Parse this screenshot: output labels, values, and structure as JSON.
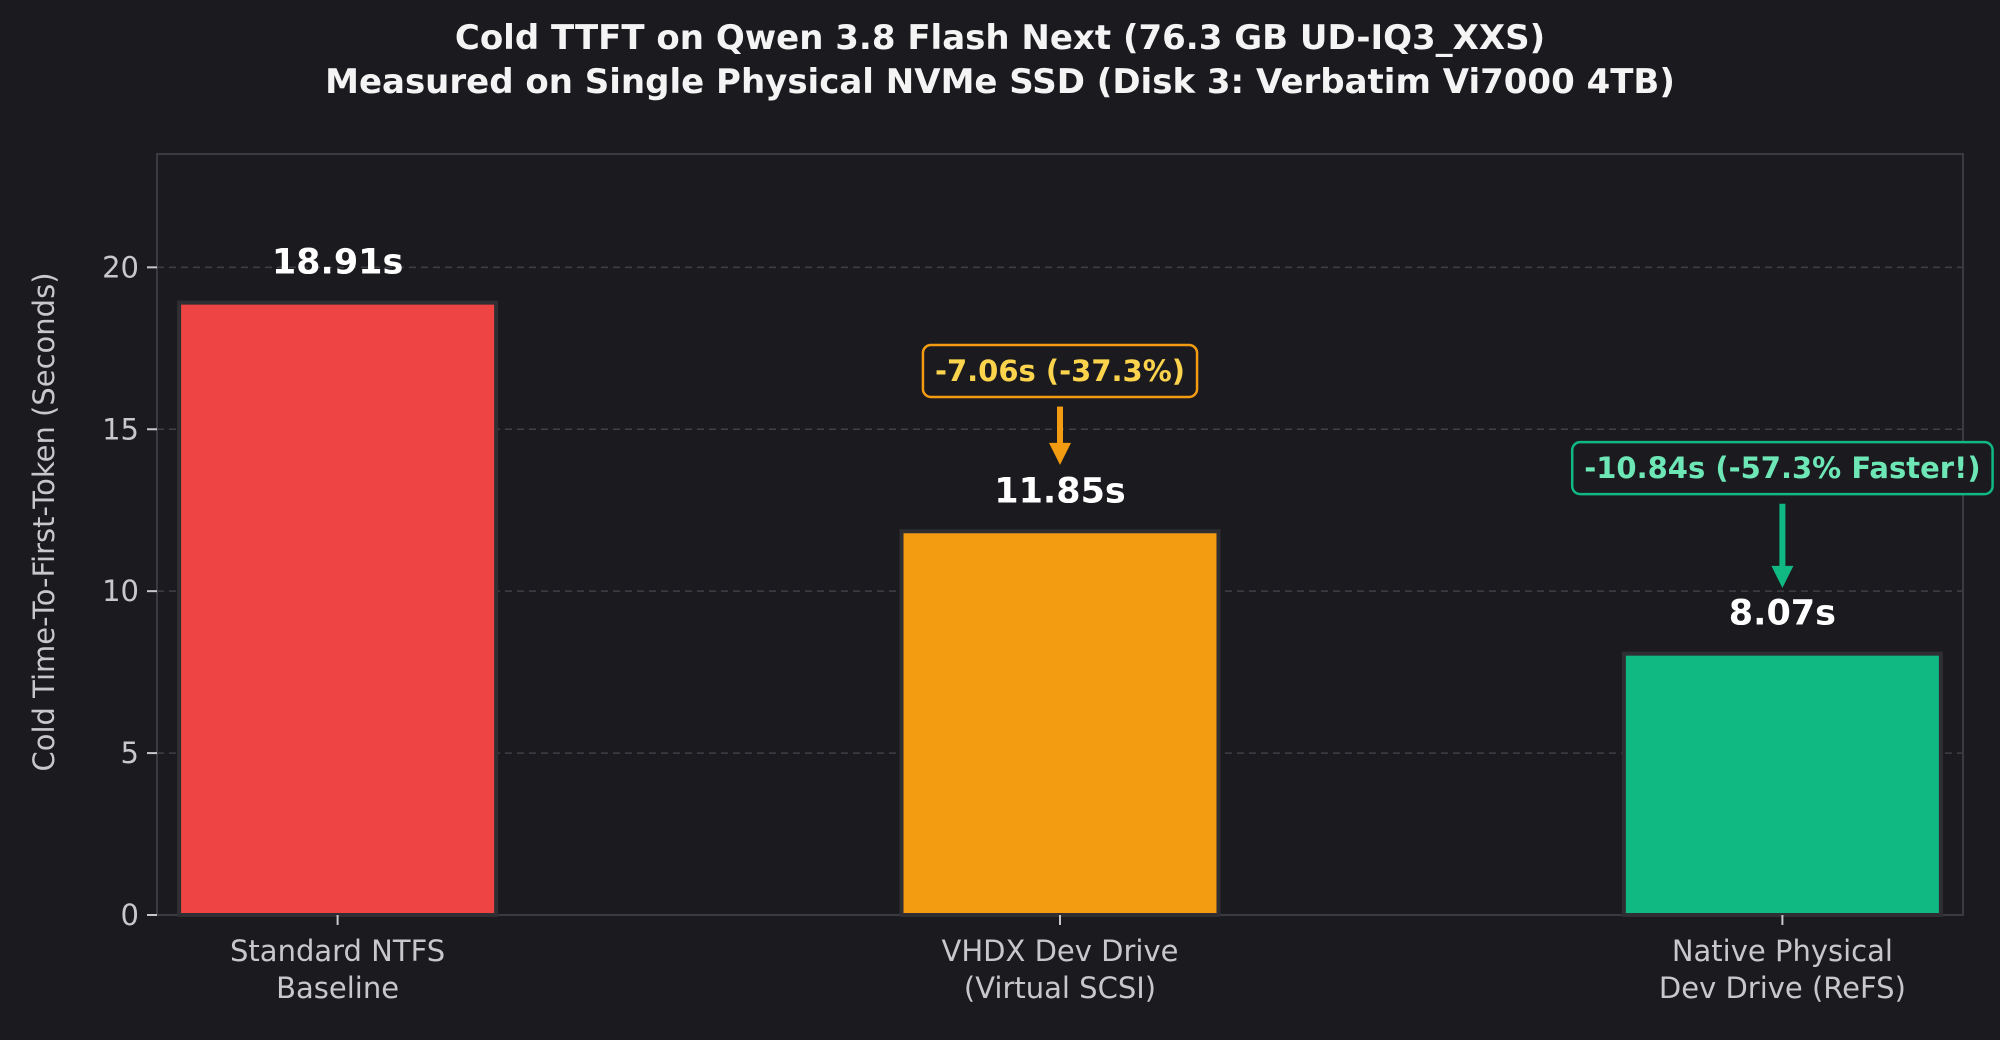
{
  "chart_data": {
    "type": "bar",
    "title_lines": [
      "Cold TTFT on Qwen 3.8 Flash Next (76.3 GB UD-IQ3_XXS)",
      "Measured on Single Physical NVMe SSD (Disk 3: Verbatim Vi7000 4TB)"
    ],
    "ylabel": "Cold Time-To-First-Token (Seconds)",
    "ylim": [
      0,
      23.5
    ],
    "yticks": [
      0,
      5,
      10,
      15,
      20
    ],
    "grid": true,
    "categories": [
      [
        "Standard NTFS",
        "Baseline"
      ],
      [
        "VHDX Dev Drive",
        "(Virtual SCSI)"
      ],
      [
        "Native Physical",
        "Dev Drive (ReFS)"
      ]
    ],
    "values": [
      18.91,
      11.85,
      8.07
    ],
    "value_labels": [
      "18.91s",
      "11.85s",
      "8.07s"
    ],
    "bar_colors": [
      "#ef4444",
      "#f39c12",
      "#10b981"
    ],
    "annotations": [
      {
        "bar_index": 1,
        "text": "-7.06s (-37.3%)",
        "text_color": "#fcd34d",
        "box_color": "#f39c12",
        "arrow_color": "#f39c12",
        "text_y": 16.8,
        "arrow_from": 15.7,
        "arrow_to": 13.9
      },
      {
        "bar_index": 2,
        "text": "-10.84s (-57.3% Faster!)",
        "text_color": "#6ee7b7",
        "box_color": "#10b981",
        "arrow_color": "#10b981",
        "text_y": 13.8,
        "arrow_from": 12.7,
        "arrow_to": 10.1
      }
    ]
  },
  "colors": {
    "background": "#1b1b1f",
    "axes_face": "#1b1b1f",
    "spine": "#3a3a40",
    "grid": "#3f3f46",
    "bar_edge": "#2e2e33",
    "text": "#f4f4f5",
    "tick": "#c7c7cc"
  }
}
